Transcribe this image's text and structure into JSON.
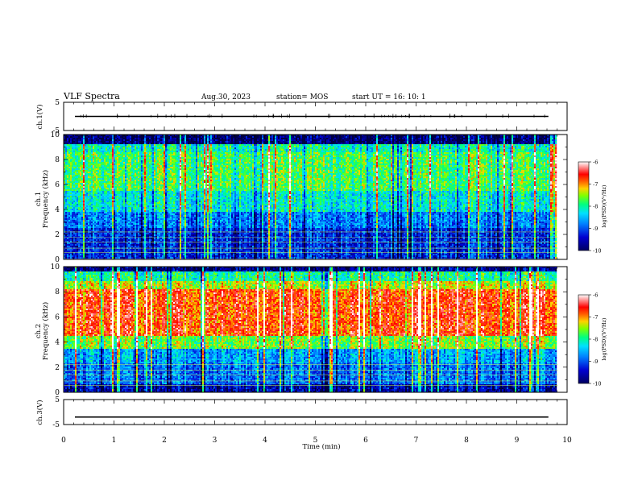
{
  "header": {
    "title": "VLF Spectra",
    "date": "Aug.30, 2023",
    "station": "station= MOS",
    "start_ut": "start  UT =   16: 10: 1"
  },
  "chart_data": [
    {
      "type": "line",
      "name": "ch1-voltage",
      "ylabel": "ch.1(V)",
      "ylim": [
        -5,
        5
      ],
      "yticks": [
        "5",
        "-5"
      ],
      "xlim": [
        0,
        10
      ],
      "series": [
        {
          "x": [
            0,
            9.82
          ],
          "y": [
            0,
            0
          ]
        }
      ]
    },
    {
      "type": "heatmap",
      "name": "ch1-spectrogram",
      "ylabel": "ch.1",
      "ylabel2": "Frequency (kHz)",
      "ylim": [
        0,
        10
      ],
      "yticks": [
        "0",
        "2",
        "4",
        "6",
        "8",
        "10"
      ],
      "xlim": [
        0,
        10
      ],
      "data_extent_min": 9.82,
      "colorbar": {
        "label": "log(PSD)(V²/Hz)",
        "range": [
          -10,
          -6
        ],
        "ticks": [
          "-6",
          "-7",
          "-8",
          "-9",
          "-10"
        ]
      }
    },
    {
      "type": "heatmap",
      "name": "ch2-spectrogram",
      "ylabel": "ch.2",
      "ylabel2": "Frequency (kHz)",
      "ylim": [
        0,
        10
      ],
      "yticks": [
        "0",
        "2",
        "4",
        "6",
        "8",
        "10"
      ],
      "xlim": [
        0,
        10
      ],
      "data_extent_min": 9.82,
      "colorbar": {
        "label": "log(PSD)(V²/Hz)",
        "range": [
          -10,
          -6
        ],
        "ticks": [
          "-6",
          "-7",
          "-8",
          "-9",
          "-10"
        ]
      }
    },
    {
      "type": "line",
      "name": "ch3-voltage",
      "ylabel": "ch.3(V)",
      "ylim": [
        -5,
        5
      ],
      "yticks": [
        "5",
        "-5"
      ],
      "xlim": [
        0,
        10
      ],
      "xlabel": "Time (min)",
      "xticks": [
        "0",
        "1",
        "2",
        "3",
        "4",
        "5",
        "6",
        "7",
        "8",
        "9",
        "10"
      ],
      "series": [
        {
          "x": [
            0,
            9.82
          ],
          "y": [
            -2,
            -2
          ]
        }
      ]
    }
  ],
  "colors": {
    "scale": [
      "#000040",
      "#0000a0",
      "#0040ff",
      "#00c0ff",
      "#00ffa0",
      "#40ff00",
      "#c0ff00",
      "#ff8000",
      "#ff0000",
      "#ffffff"
    ]
  }
}
